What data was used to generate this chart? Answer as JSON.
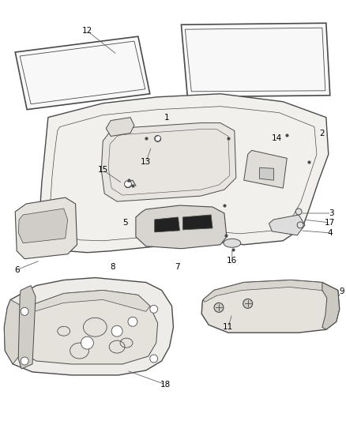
{
  "bg_color": "#ffffff",
  "line_color": "#4a4a4a",
  "fig_width": 4.38,
  "fig_height": 5.33,
  "dpi": 100,
  "label_fontsize": 7.5
}
